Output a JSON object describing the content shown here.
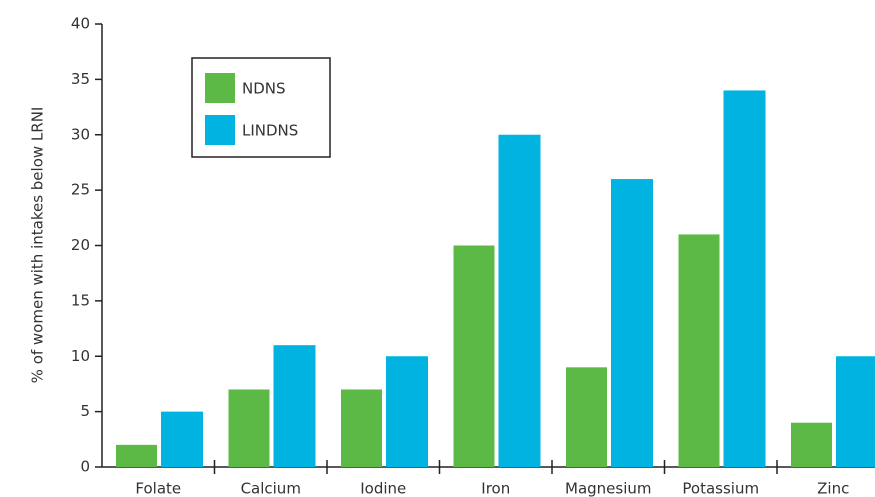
{
  "chart_data": {
    "type": "bar",
    "y_label": "% of women with intakes below LRNI",
    "categories": [
      "Folate",
      "Calcium",
      "Iodine",
      "Iron",
      "Magnesium",
      "Potassium",
      "Zinc"
    ],
    "series": [
      {
        "name": "NDNS",
        "color": "#5cb946",
        "values": [
          2,
          7,
          7,
          20,
          9,
          21,
          4
        ]
      },
      {
        "name": "LINDNS",
        "color": "#00b3e0",
        "values": [
          5,
          11,
          10,
          30,
          26,
          34,
          10
        ]
      }
    ],
    "ylim": [
      0,
      40
    ],
    "yticks": [
      0,
      5,
      10,
      15,
      20,
      25,
      30,
      35,
      40
    ],
    "grid": false
  }
}
